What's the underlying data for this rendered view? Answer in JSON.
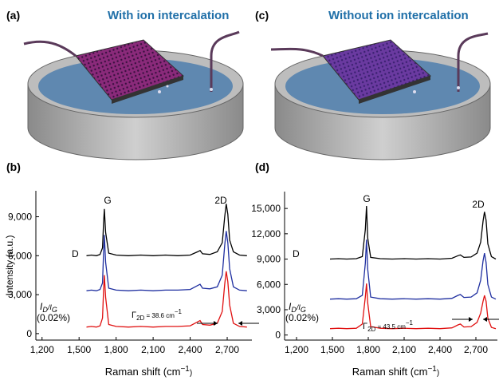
{
  "panels": [
    {
      "label": "(a)",
      "title": "With ion intercalation"
    },
    {
      "label": "(c)",
      "title": "Without ion intercalation"
    }
  ],
  "chart_data": [
    {
      "type": "line",
      "panel_label": "(b)",
      "ylabel": "Intensity (a.u.)",
      "xlabel": [
        "Raman shift (cm",
        "−1",
        ")"
      ],
      "xlim": [
        1150,
        2900
      ],
      "ylim": [
        -500,
        11000
      ],
      "xticks": [
        {
          "value": 1200,
          "label": "1,200"
        },
        {
          "value": 1500,
          "label": "1,500"
        },
        {
          "value": 1800,
          "label": "1,800"
        },
        {
          "value": 2100,
          "label": "2,100"
        },
        {
          "value": 2400,
          "label": "2,400"
        },
        {
          "value": 2700,
          "label": "2,700"
        }
      ],
      "yticks": [
        0,
        {
          "value": 3000,
          "label": "3,000"
        },
        {
          "value": 6000,
          "label": "6,000"
        },
        {
          "value": 9000,
          "label": "9,000"
        }
      ],
      "annotations": {
        "g": "G",
        "two_d": "2D",
        "d": "D",
        "ratio": [
          "I",
          "D",
          "/I",
          "G"
        ],
        "ratio_value": "(0.02%)",
        "fwhm": [
          "Γ",
          "2D",
          " = 38.6 cm",
          "−1"
        ]
      },
      "x": [
        1560,
        1600,
        1640,
        1670,
        1690,
        1698,
        1705,
        1715,
        1740,
        1800,
        1900,
        2000,
        2100,
        2200,
        2300,
        2400,
        2460,
        2480,
        2500,
        2560,
        2620,
        2660,
        2680,
        2692,
        2705,
        2720,
        2750,
        2800,
        2860
      ],
      "series": [
        {
          "color": "#000000",
          "values": [
            6000,
            6050,
            6000,
            6100,
            6600,
            8500,
            9600,
            7800,
            6200,
            6050,
            6000,
            6050,
            6000,
            6050,
            6000,
            6050,
            6300,
            6400,
            6150,
            6100,
            6300,
            7000,
            9000,
            10000,
            9200,
            7200,
            6300,
            6050,
            6000
          ]
        },
        {
          "color": "#1f2fa0",
          "values": [
            3300,
            3350,
            3300,
            3400,
            3900,
            6200,
            7600,
            5500,
            3500,
            3350,
            3300,
            3350,
            3300,
            3350,
            3350,
            3400,
            3700,
            3800,
            3500,
            3450,
            3600,
            4500,
            6800,
            7900,
            7000,
            5000,
            3600,
            3350,
            3300
          ]
        },
        {
          "color": "#e01010",
          "values": [
            500,
            550,
            500,
            600,
            1200,
            3300,
            4500,
            2800,
            700,
            550,
            500,
            550,
            500,
            550,
            550,
            600,
            900,
            1000,
            700,
            650,
            800,
            1700,
            3800,
            4800,
            4000,
            2200,
            800,
            550,
            500
          ]
        }
      ]
    },
    {
      "type": "line",
      "panel_label": "(d)",
      "xlabel": [
        "Raman shift (cm",
        "−1",
        ")"
      ],
      "xlim": [
        1100,
        2880
      ],
      "ylim": [
        -600,
        17000
      ],
      "xticks": [
        {
          "value": 1200,
          "label": "1,200"
        },
        {
          "value": 1500,
          "label": "1,500"
        },
        {
          "value": 1800,
          "label": "1,800"
        },
        {
          "value": 2100,
          "label": "2,100"
        },
        {
          "value": 2400,
          "label": "2,400"
        },
        {
          "value": 2700,
          "label": "2,700"
        }
      ],
      "yticks": [
        0,
        {
          "value": 3000,
          "label": "3,000"
        },
        {
          "value": 6000,
          "label": "6,000"
        },
        {
          "value": 9000,
          "label": "9,000"
        },
        {
          "value": 12000,
          "label": "12,000"
        },
        {
          "value": 15000,
          "label": "15,000"
        }
      ],
      "annotations": {
        "g": "G",
        "two_d": "2D",
        "d": "D",
        "ratio": [
          "I",
          "D",
          "/I",
          "G"
        ],
        "ratio_value": "(0.02%)",
        "fwhm": [
          "Γ",
          "2D",
          " = 43.5 cm",
          "−1"
        ]
      },
      "x": [
        1480,
        1550,
        1620,
        1700,
        1750,
        1775,
        1785,
        1795,
        1820,
        1900,
        2000,
        2100,
        2200,
        2300,
        2400,
        2500,
        2550,
        2570,
        2600,
        2660,
        2710,
        2740,
        2760,
        2772,
        2785,
        2800,
        2830,
        2867
      ],
      "series": [
        {
          "color": "#000000",
          "values": [
            9000,
            9050,
            9000,
            9050,
            9300,
            12500,
            15300,
            11500,
            9200,
            9050,
            9000,
            9050,
            9000,
            9050,
            9000,
            9100,
            9400,
            9500,
            9200,
            9250,
            9700,
            11000,
            13500,
            14600,
            13600,
            10800,
            9300,
            9000
          ]
        },
        {
          "color": "#1f2fa0",
          "values": [
            4250,
            4300,
            4250,
            4300,
            4700,
            8500,
            11300,
            7800,
            4500,
            4300,
            4250,
            4300,
            4250,
            4300,
            4250,
            4350,
            4700,
            4800,
            4450,
            4500,
            5000,
            6500,
            8800,
            9700,
            8600,
            6000,
            4500,
            4250
          ]
        },
        {
          "color": "#e01010",
          "values": [
            750,
            800,
            750,
            800,
            1300,
            4500,
            6100,
            3800,
            1000,
            800,
            750,
            800,
            750,
            800,
            750,
            850,
            1200,
            1300,
            950,
            1000,
            1500,
            2600,
            4000,
            4700,
            4000,
            2000,
            900,
            750
          ]
        }
      ]
    }
  ]
}
